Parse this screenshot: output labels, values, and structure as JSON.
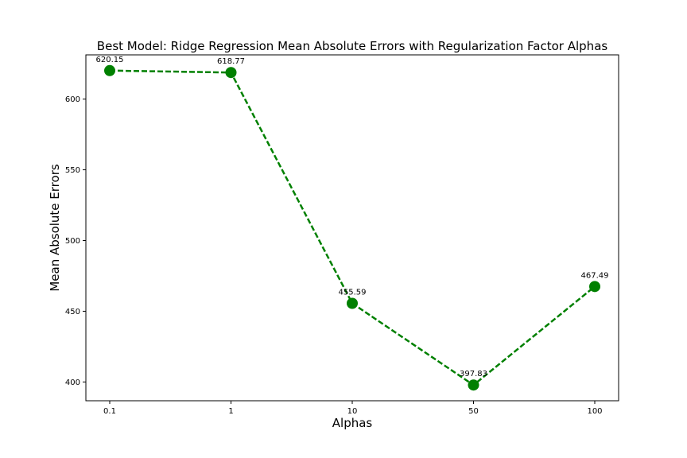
{
  "chart_data": {
    "type": "line",
    "title": "Best Model: Ridge Regression Mean Absolute Errors with Regularization Factor Alphas",
    "xlabel": "Alphas",
    "ylabel": "Mean Absolute Errors",
    "categories": [
      "0.1",
      "1",
      "10",
      "50",
      "100"
    ],
    "series": [
      {
        "values": [
          620.15,
          618.77,
          455.59,
          397.83,
          467.49
        ]
      }
    ],
    "data_labels": [
      "620.15",
      "618.77",
      "455.59",
      "397.83",
      "467.49"
    ],
    "yticks": [
      400,
      450,
      500,
      550,
      600
    ],
    "ylim": [
      386.72,
      631.26
    ],
    "grid": false,
    "line_style": "dashed",
    "marker": "circle",
    "color": "#008000"
  }
}
